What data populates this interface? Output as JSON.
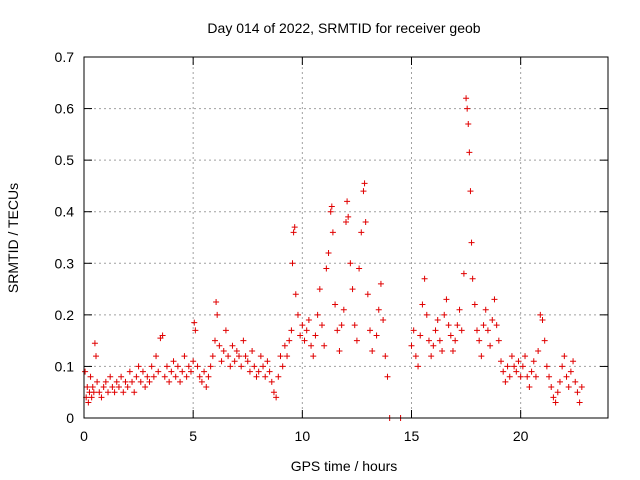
{
  "chart_data": {
    "type": "scatter",
    "title": "Day 014 of 2022, SRMTID for receiver geob",
    "xlabel": "GPS time / hours",
    "ylabel": "SRMTID / TECUs",
    "xlim": [
      0,
      24
    ],
    "ylim": [
      0,
      0.7
    ],
    "x_ticks": [
      0,
      5,
      10,
      15,
      20
    ],
    "y_ticks": [
      0,
      0.1,
      0.2,
      0.3,
      0.4,
      0.5,
      0.6,
      0.7
    ],
    "x_tick_labels": [
      "0",
      "5",
      "10",
      "15",
      "20"
    ],
    "y_tick_labels": [
      "0",
      "0.1",
      "0.2",
      "0.3",
      "0.4",
      "0.5",
      "0.6",
      "0.7"
    ],
    "grid": true,
    "marker": "plus",
    "color": "#e00000",
    "series": [
      {
        "name": "SRMTID",
        "points": [
          [
            0.05,
            0.09
          ],
          [
            0.1,
            0.04
          ],
          [
            0.15,
            0.06
          ],
          [
            0.2,
            0.03
          ],
          [
            0.25,
            0.05
          ],
          [
            0.3,
            0.08
          ],
          [
            0.35,
            0.04
          ],
          [
            0.4,
            0.06
          ],
          [
            0.45,
            0.05
          ],
          [
            0.5,
            0.145
          ],
          [
            0.55,
            0.12
          ],
          [
            0.6,
            0.07
          ],
          [
            0.7,
            0.05
          ],
          [
            0.8,
            0.04
          ],
          [
            0.9,
            0.06
          ],
          [
            1.0,
            0.07
          ],
          [
            1.1,
            0.05
          ],
          [
            1.2,
            0.08
          ],
          [
            1.3,
            0.06
          ],
          [
            1.4,
            0.05
          ],
          [
            1.5,
            0.07
          ],
          [
            1.6,
            0.06
          ],
          [
            1.7,
            0.08
          ],
          [
            1.8,
            0.05
          ],
          [
            1.9,
            0.07
          ],
          [
            2.0,
            0.06
          ],
          [
            2.1,
            0.09
          ],
          [
            2.2,
            0.07
          ],
          [
            2.3,
            0.05
          ],
          [
            2.4,
            0.08
          ],
          [
            2.5,
            0.1
          ],
          [
            2.6,
            0.07
          ],
          [
            2.7,
            0.09
          ],
          [
            2.8,
            0.06
          ],
          [
            2.9,
            0.08
          ],
          [
            3.0,
            0.07
          ],
          [
            3.1,
            0.1
          ],
          [
            3.2,
            0.08
          ],
          [
            3.3,
            0.12
          ],
          [
            3.4,
            0.09
          ],
          [
            3.5,
            0.155
          ],
          [
            3.6,
            0.16
          ],
          [
            3.7,
            0.08
          ],
          [
            3.8,
            0.1
          ],
          [
            3.9,
            0.07
          ],
          [
            4.0,
            0.09
          ],
          [
            4.1,
            0.11
          ],
          [
            4.2,
            0.08
          ],
          [
            4.3,
            0.1
          ],
          [
            4.4,
            0.07
          ],
          [
            4.5,
            0.09
          ],
          [
            4.6,
            0.12
          ],
          [
            4.7,
            0.08
          ],
          [
            4.8,
            0.1
          ],
          [
            4.9,
            0.09
          ],
          [
            5.0,
            0.11
          ],
          [
            5.05,
            0.185
          ],
          [
            5.1,
            0.17
          ],
          [
            5.2,
            0.1
          ],
          [
            5.3,
            0.08
          ],
          [
            5.4,
            0.07
          ],
          [
            5.5,
            0.09
          ],
          [
            5.6,
            0.06
          ],
          [
            5.7,
            0.08
          ],
          [
            5.8,
            0.1
          ],
          [
            5.9,
            0.12
          ],
          [
            6.0,
            0.15
          ],
          [
            6.05,
            0.225
          ],
          [
            6.1,
            0.2
          ],
          [
            6.2,
            0.14
          ],
          [
            6.3,
            0.11
          ],
          [
            6.4,
            0.13
          ],
          [
            6.5,
            0.17
          ],
          [
            6.6,
            0.12
          ],
          [
            6.7,
            0.1
          ],
          [
            6.8,
            0.14
          ],
          [
            6.9,
            0.11
          ],
          [
            7.0,
            0.13
          ],
          [
            7.1,
            0.12
          ],
          [
            7.2,
            0.1
          ],
          [
            7.3,
            0.15
          ],
          [
            7.4,
            0.12
          ],
          [
            7.5,
            0.11
          ],
          [
            7.6,
            0.09
          ],
          [
            7.7,
            0.13
          ],
          [
            7.8,
            0.1
          ],
          [
            7.9,
            0.08
          ],
          [
            8.0,
            0.09
          ],
          [
            8.1,
            0.12
          ],
          [
            8.2,
            0.1
          ],
          [
            8.3,
            0.08
          ],
          [
            8.4,
            0.11
          ],
          [
            8.5,
            0.09
          ],
          [
            8.6,
            0.07
          ],
          [
            8.7,
            0.05
          ],
          [
            8.8,
            0.04
          ],
          [
            8.9,
            0.08
          ],
          [
            9.0,
            0.12
          ],
          [
            9.1,
            0.1
          ],
          [
            9.2,
            0.14
          ],
          [
            9.3,
            0.12
          ],
          [
            9.4,
            0.15
          ],
          [
            9.5,
            0.17
          ],
          [
            9.55,
            0.3
          ],
          [
            9.6,
            0.36
          ],
          [
            9.65,
            0.37
          ],
          [
            9.7,
            0.24
          ],
          [
            9.8,
            0.2
          ],
          [
            9.9,
            0.16
          ],
          [
            10.0,
            0.18
          ],
          [
            10.1,
            0.15
          ],
          [
            10.2,
            0.17
          ],
          [
            10.3,
            0.19
          ],
          [
            10.4,
            0.14
          ],
          [
            10.5,
            0.12
          ],
          [
            10.6,
            0.16
          ],
          [
            10.7,
            0.2
          ],
          [
            10.8,
            0.25
          ],
          [
            10.9,
            0.18
          ],
          [
            11.0,
            0.14
          ],
          [
            11.1,
            0.29
          ],
          [
            11.2,
            0.32
          ],
          [
            11.3,
            0.4
          ],
          [
            11.35,
            0.41
          ],
          [
            11.4,
            0.36
          ],
          [
            11.5,
            0.22
          ],
          [
            11.6,
            0.17
          ],
          [
            11.7,
            0.13
          ],
          [
            11.8,
            0.18
          ],
          [
            11.9,
            0.21
          ],
          [
            12.0,
            0.38
          ],
          [
            12.05,
            0.42
          ],
          [
            12.1,
            0.39
          ],
          [
            12.2,
            0.3
          ],
          [
            12.3,
            0.25
          ],
          [
            12.4,
            0.18
          ],
          [
            12.5,
            0.15
          ],
          [
            12.6,
            0.29
          ],
          [
            12.7,
            0.36
          ],
          [
            12.8,
            0.44
          ],
          [
            12.85,
            0.455
          ],
          [
            12.9,
            0.38
          ],
          [
            13.0,
            0.24
          ],
          [
            13.1,
            0.17
          ],
          [
            13.2,
            0.13
          ],
          [
            13.4,
            0.16
          ],
          [
            13.5,
            0.21
          ],
          [
            13.6,
            0.26
          ],
          [
            13.7,
            0.19
          ],
          [
            13.8,
            0.12
          ],
          [
            13.9,
            0.08
          ],
          [
            14.0,
            0.0
          ],
          [
            14.5,
            0.0
          ],
          [
            15.0,
            0.14
          ],
          [
            15.1,
            0.17
          ],
          [
            15.2,
            0.12
          ],
          [
            15.3,
            0.1
          ],
          [
            15.4,
            0.16
          ],
          [
            15.5,
            0.22
          ],
          [
            15.6,
            0.27
          ],
          [
            15.7,
            0.2
          ],
          [
            15.8,
            0.15
          ],
          [
            15.9,
            0.12
          ],
          [
            16.0,
            0.14
          ],
          [
            16.1,
            0.17
          ],
          [
            16.2,
            0.19
          ],
          [
            16.3,
            0.15
          ],
          [
            16.4,
            0.13
          ],
          [
            16.5,
            0.2
          ],
          [
            16.6,
            0.23
          ],
          [
            16.7,
            0.18
          ],
          [
            16.8,
            0.16
          ],
          [
            16.9,
            0.13
          ],
          [
            17.0,
            0.15
          ],
          [
            17.1,
            0.18
          ],
          [
            17.2,
            0.21
          ],
          [
            17.3,
            0.17
          ],
          [
            17.4,
            0.28
          ],
          [
            17.5,
            0.62
          ],
          [
            17.55,
            0.6
          ],
          [
            17.6,
            0.57
          ],
          [
            17.65,
            0.515
          ],
          [
            17.7,
            0.44
          ],
          [
            17.75,
            0.34
          ],
          [
            17.8,
            0.27
          ],
          [
            17.9,
            0.22
          ],
          [
            18.0,
            0.17
          ],
          [
            18.1,
            0.15
          ],
          [
            18.2,
            0.12
          ],
          [
            18.3,
            0.18
          ],
          [
            18.4,
            0.21
          ],
          [
            18.5,
            0.17
          ],
          [
            18.6,
            0.14
          ],
          [
            18.7,
            0.19
          ],
          [
            18.8,
            0.23
          ],
          [
            18.9,
            0.18
          ],
          [
            19.0,
            0.15
          ],
          [
            19.1,
            0.11
          ],
          [
            19.2,
            0.09
          ],
          [
            19.3,
            0.07
          ],
          [
            19.4,
            0.1
          ],
          [
            19.5,
            0.08
          ],
          [
            19.6,
            0.12
          ],
          [
            19.7,
            0.1
          ],
          [
            19.8,
            0.09
          ],
          [
            19.9,
            0.11
          ],
          [
            20.0,
            0.08
          ],
          [
            20.1,
            0.1
          ],
          [
            20.2,
            0.12
          ],
          [
            20.3,
            0.08
          ],
          [
            20.4,
            0.06
          ],
          [
            20.5,
            0.09
          ],
          [
            20.6,
            0.11
          ],
          [
            20.7,
            0.08
          ],
          [
            20.8,
            0.13
          ],
          [
            20.9,
            0.2
          ],
          [
            21.0,
            0.19
          ],
          [
            21.1,
            0.15
          ],
          [
            21.2,
            0.1
          ],
          [
            21.3,
            0.08
          ],
          [
            21.4,
            0.06
          ],
          [
            21.5,
            0.04
          ],
          [
            21.6,
            0.03
          ],
          [
            21.7,
            0.05
          ],
          [
            21.8,
            0.07
          ],
          [
            21.9,
            0.1
          ],
          [
            22.0,
            0.12
          ],
          [
            22.1,
            0.08
          ],
          [
            22.2,
            0.06
          ],
          [
            22.3,
            0.09
          ],
          [
            22.4,
            0.11
          ],
          [
            22.5,
            0.07
          ],
          [
            22.6,
            0.05
          ],
          [
            22.7,
            0.03
          ],
          [
            22.8,
            0.06
          ]
        ]
      }
    ]
  }
}
